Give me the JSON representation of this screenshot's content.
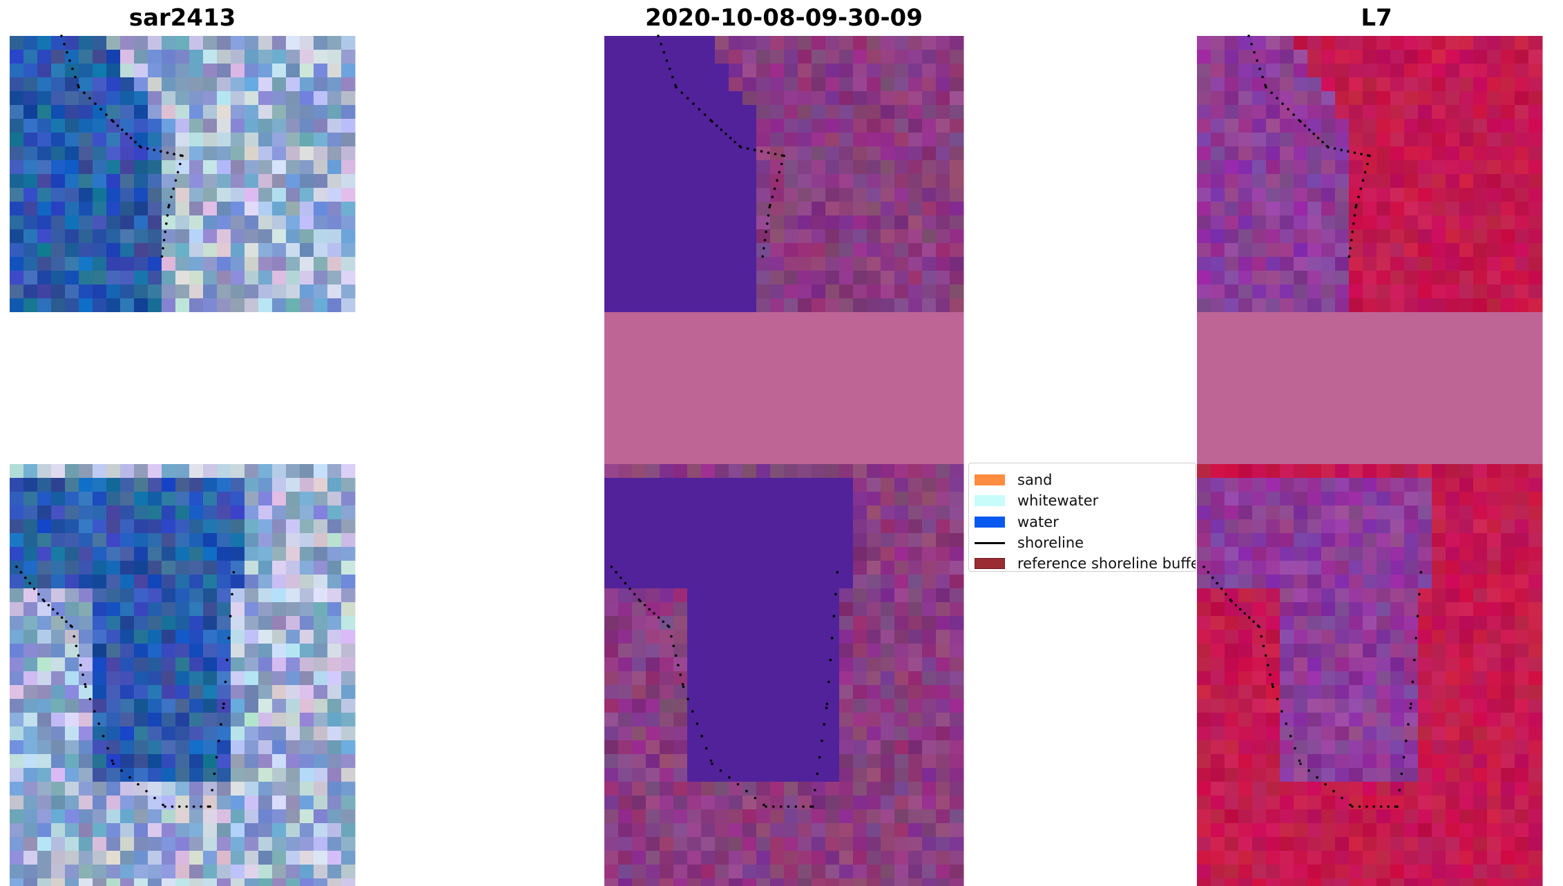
{
  "panels": [
    {
      "id": "rgb",
      "title": "sar2413"
    },
    {
      "id": "classified",
      "title": "2020-10-08-09-30-09"
    },
    {
      "id": "index",
      "title": "L7"
    }
  ],
  "legend": {
    "items": [
      {
        "label": "sand",
        "color": "#ff8c40",
        "kind": "patch"
      },
      {
        "label": "whitewater",
        "color": "#c8fcfa",
        "kind": "patch"
      },
      {
        "label": "water",
        "color": "#0a59ef",
        "kind": "patch"
      },
      {
        "label": "shoreline",
        "color": "#000000",
        "kind": "line"
      },
      {
        "label": "reference shoreline buffer",
        "color": "#9b2c34",
        "kind": "patch"
      }
    ]
  },
  "colors": {
    "nodata_pink": "#be6596",
    "water_purple": "#52229a",
    "land_magenta": "#8a3d80",
    "rgb_blue": "#2d5ead",
    "index_red": "#c4194f",
    "index_purple": "#8d3c9a"
  }
}
